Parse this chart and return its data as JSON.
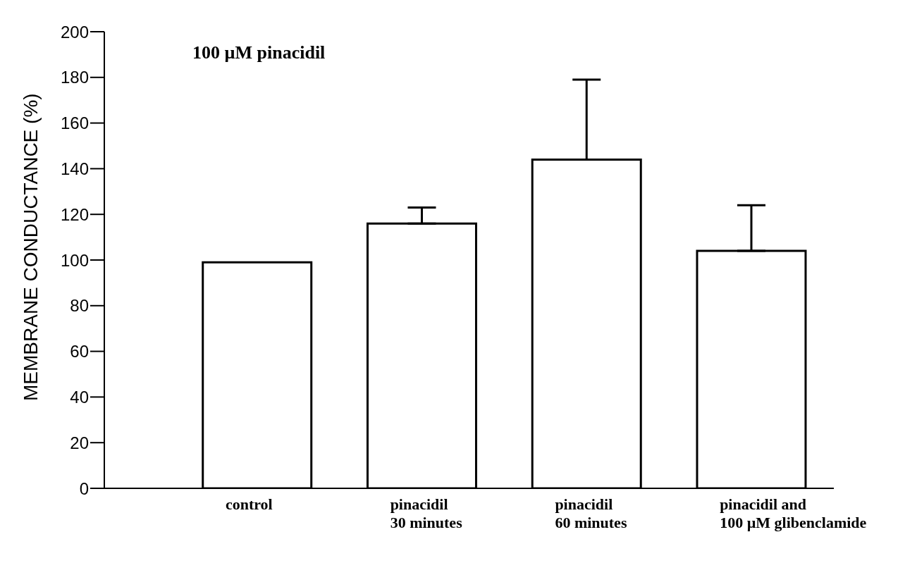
{
  "chart_data": {
    "type": "bar",
    "ylabel": "MEMBRANE CONDUCTANCE (%)",
    "annotations": [
      "100 µM pinacidil"
    ],
    "categories": [
      "control",
      "pinacidil\n30 minutes",
      "pinacidil\n60 minutes",
      "pinacidil and\n100 µM glibenclamide"
    ],
    "values": [
      99,
      116,
      144,
      104
    ],
    "color": "#ffffff",
    "errors": [
      null,
      [
        116,
        123
      ],
      [
        144,
        179
      ],
      [
        104,
        124
      ]
    ],
    "ylim": [
      0,
      200
    ],
    "yticks": [
      0,
      20,
      40,
      60,
      80,
      100,
      120,
      140,
      160,
      180,
      200
    ],
    "grid": false,
    "legend": false
  }
}
